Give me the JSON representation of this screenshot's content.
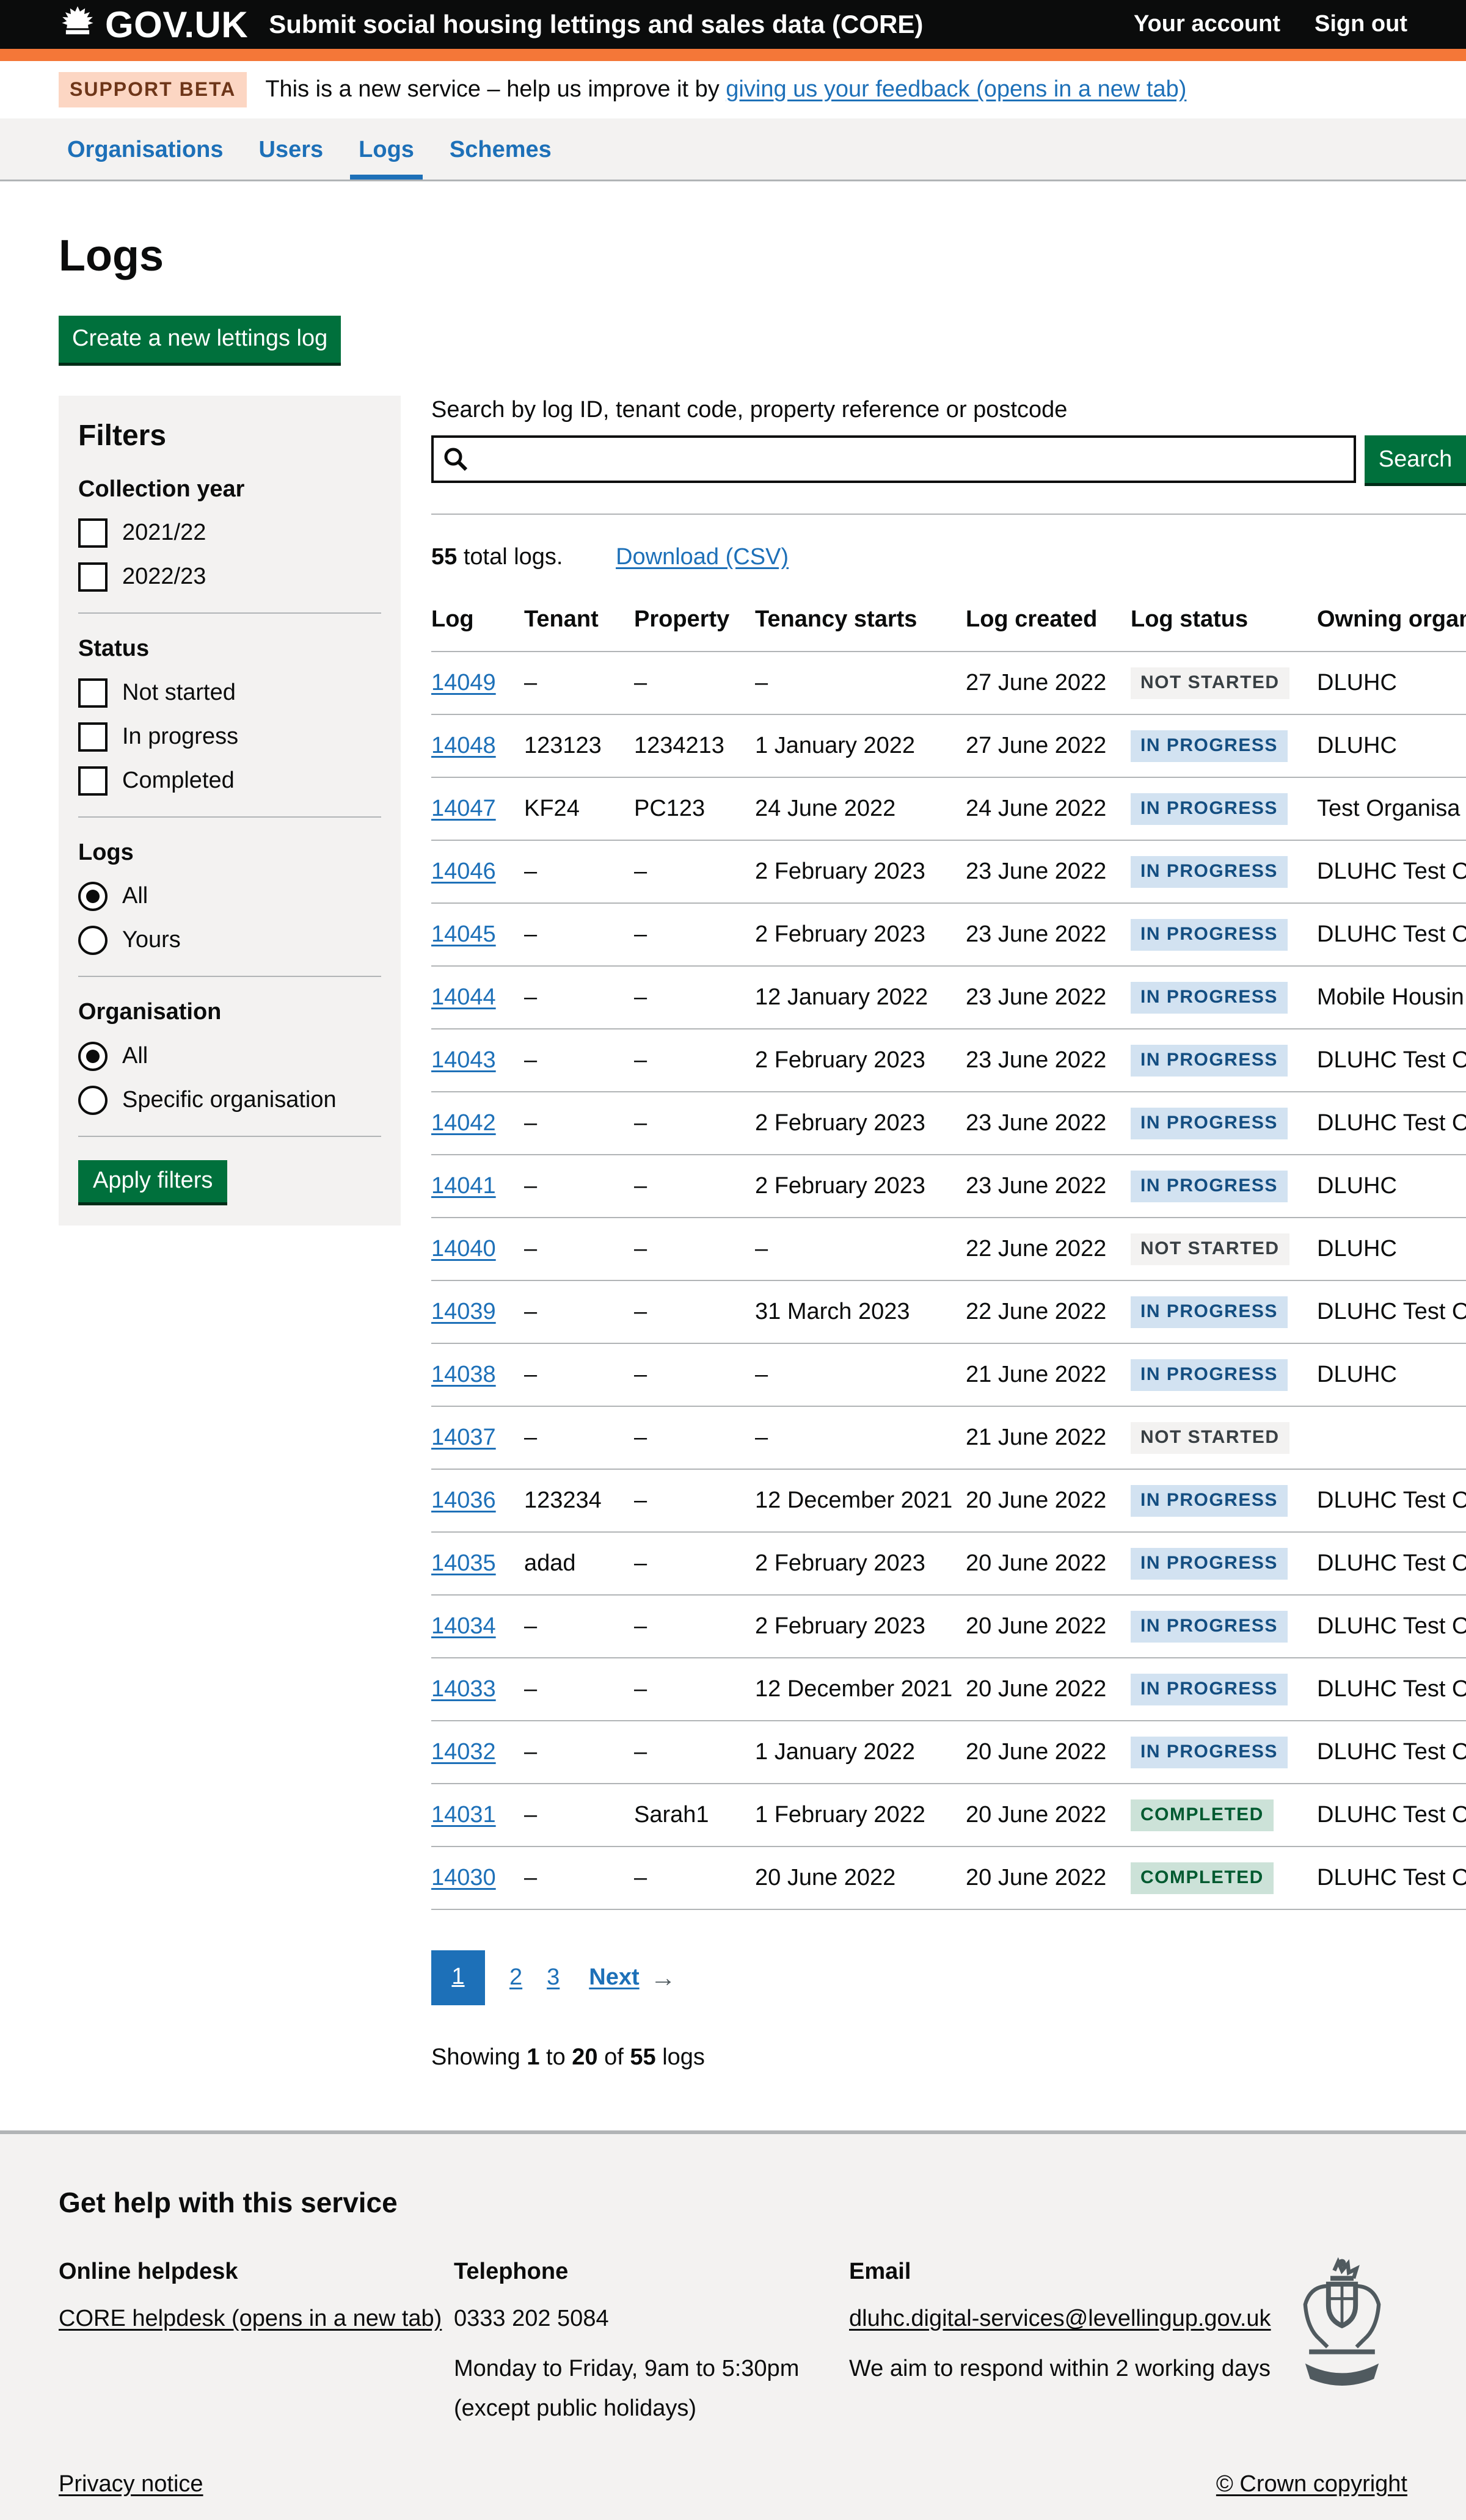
{
  "colors": {
    "header_bg": "#0b0c0c",
    "header_accent": "#f47738",
    "link_blue": "#1d70b8",
    "button_green": "#00703c",
    "panel_grey": "#f3f2f1",
    "border_grey": "#b1b4b6",
    "beta_tag_bg": "#fcd6c3",
    "beta_tag_text": "#6e3619",
    "tag_grey_bg": "#f3f2f1",
    "tag_grey_text": "#383f43",
    "tag_blue_bg": "#d2e2f1",
    "tag_blue_text": "#144e81",
    "tag_green_bg": "#cce2d8",
    "tag_green_text": "#005a30",
    "crest_grey": "#505a5f"
  },
  "header": {
    "logo": "GOV.UK",
    "service_name": "Submit social housing lettings and sales data (CORE)",
    "links": [
      {
        "label": "Your account"
      },
      {
        "label": "Sign out"
      }
    ]
  },
  "phase_banner": {
    "tag": "SUPPORT BETA",
    "text": "This is a new service – help us improve it by ",
    "link": "giving us your feedback (opens in a new tab)"
  },
  "nav": {
    "items": [
      {
        "label": "Organisations",
        "active": false
      },
      {
        "label": "Users",
        "active": false
      },
      {
        "label": "Logs",
        "active": true
      },
      {
        "label": "Schemes",
        "active": false
      }
    ]
  },
  "page": {
    "title": "Logs",
    "create_button": "Create a new lettings log"
  },
  "filters": {
    "title": "Filters",
    "apply_button": "Apply filters",
    "groups": [
      {
        "label": "Collection year",
        "type": "checkbox",
        "options": [
          {
            "label": "2021/22",
            "checked": false
          },
          {
            "label": "2022/23",
            "checked": false
          }
        ]
      },
      {
        "label": "Status",
        "type": "checkbox",
        "options": [
          {
            "label": "Not started",
            "checked": false
          },
          {
            "label": "In progress",
            "checked": false
          },
          {
            "label": "Completed",
            "checked": false
          }
        ]
      },
      {
        "label": "Logs",
        "type": "radio",
        "options": [
          {
            "label": "All",
            "checked": true
          },
          {
            "label": "Yours",
            "checked": false
          }
        ]
      },
      {
        "label": "Organisation",
        "type": "radio",
        "options": [
          {
            "label": "All",
            "checked": true
          },
          {
            "label": "Specific organisation",
            "checked": false
          }
        ]
      }
    ]
  },
  "search": {
    "label": "Search by log ID, tenant code, property reference or postcode",
    "value": "",
    "button": "Search"
  },
  "results": {
    "count": "55",
    "count_suffix": " total logs.",
    "download_link": "Download (CSV)"
  },
  "table": {
    "headers": [
      "Log",
      "Tenant",
      "Property",
      "Tenancy starts",
      "Log created",
      "Log status",
      "Owning organisation"
    ],
    "rows": [
      {
        "log": "14049",
        "tenant": "–",
        "property": "–",
        "tenancy_starts": "–",
        "log_created": "27 June 2022",
        "status": {
          "label": "NOT STARTED",
          "type": "grey"
        },
        "owning_org": "DLUHC"
      },
      {
        "log": "14048",
        "tenant": "123123",
        "property": "1234213",
        "tenancy_starts": "1 January 2022",
        "log_created": "27 June 2022",
        "status": {
          "label": "IN PROGRESS",
          "type": "blue"
        },
        "owning_org": "DLUHC"
      },
      {
        "log": "14047",
        "tenant": "KF24",
        "property": "PC123",
        "tenancy_starts": "24 June 2022",
        "log_created": "24 June 2022",
        "status": {
          "label": "IN PROGRESS",
          "type": "blue"
        },
        "owning_org": "Test Organisa"
      },
      {
        "log": "14046",
        "tenant": "–",
        "property": "–",
        "tenancy_starts": "2 February 2023",
        "log_created": "23 June 2022",
        "status": {
          "label": "IN PROGRESS",
          "type": "blue"
        },
        "owning_org": "DLUHC Test Org"
      },
      {
        "log": "14045",
        "tenant": "–",
        "property": "–",
        "tenancy_starts": "2 February 2023",
        "log_created": "23 June 2022",
        "status": {
          "label": "IN PROGRESS",
          "type": "blue"
        },
        "owning_org": "DLUHC Test Org"
      },
      {
        "log": "14044",
        "tenant": "–",
        "property": "–",
        "tenancy_starts": "12 January 2022",
        "log_created": "23 June 2022",
        "status": {
          "label": "IN PROGRESS",
          "type": "blue"
        },
        "owning_org": "Mobile Housin"
      },
      {
        "log": "14043",
        "tenant": "–",
        "property": "–",
        "tenancy_starts": "2 February 2023",
        "log_created": "23 June 2022",
        "status": {
          "label": "IN PROGRESS",
          "type": "blue"
        },
        "owning_org": "DLUHC Test Org"
      },
      {
        "log": "14042",
        "tenant": "–",
        "property": "–",
        "tenancy_starts": "2 February 2023",
        "log_created": "23 June 2022",
        "status": {
          "label": "IN PROGRESS",
          "type": "blue"
        },
        "owning_org": "DLUHC Test Org"
      },
      {
        "log": "14041",
        "tenant": "–",
        "property": "–",
        "tenancy_starts": "2 February 2023",
        "log_created": "23 June 2022",
        "status": {
          "label": "IN PROGRESS",
          "type": "blue"
        },
        "owning_org": "DLUHC"
      },
      {
        "log": "14040",
        "tenant": "–",
        "property": "–",
        "tenancy_starts": "–",
        "log_created": "22 June 2022",
        "status": {
          "label": "NOT STARTED",
          "type": "grey"
        },
        "owning_org": "DLUHC"
      },
      {
        "log": "14039",
        "tenant": "–",
        "property": "–",
        "tenancy_starts": "31 March 2023",
        "log_created": "22 June 2022",
        "status": {
          "label": "IN PROGRESS",
          "type": "blue"
        },
        "owning_org": "DLUHC Test Org"
      },
      {
        "log": "14038",
        "tenant": "–",
        "property": "–",
        "tenancy_starts": "–",
        "log_created": "21 June 2022",
        "status": {
          "label": "IN PROGRESS",
          "type": "blue"
        },
        "owning_org": "DLUHC"
      },
      {
        "log": "14037",
        "tenant": "–",
        "property": "–",
        "tenancy_starts": "–",
        "log_created": "21 June 2022",
        "status": {
          "label": "NOT STARTED",
          "type": "grey"
        },
        "owning_org": ""
      },
      {
        "log": "14036",
        "tenant": "123234",
        "property": "–",
        "tenancy_starts": "12 December 2021",
        "log_created": "20 June 2022",
        "status": {
          "label": "IN PROGRESS",
          "type": "blue"
        },
        "owning_org": "DLUHC Test Org"
      },
      {
        "log": "14035",
        "tenant": "adad",
        "property": "–",
        "tenancy_starts": "2 February 2023",
        "log_created": "20 June 2022",
        "status": {
          "label": "IN PROGRESS",
          "type": "blue"
        },
        "owning_org": "DLUHC Test Org"
      },
      {
        "log": "14034",
        "tenant": "–",
        "property": "–",
        "tenancy_starts": "2 February 2023",
        "log_created": "20 June 2022",
        "status": {
          "label": "IN PROGRESS",
          "type": "blue"
        },
        "owning_org": "DLUHC Test Org"
      },
      {
        "log": "14033",
        "tenant": "–",
        "property": "–",
        "tenancy_starts": "12 December 2021",
        "log_created": "20 June 2022",
        "status": {
          "label": "IN PROGRESS",
          "type": "blue"
        },
        "owning_org": "DLUHC Test Org"
      },
      {
        "log": "14032",
        "tenant": "–",
        "property": "–",
        "tenancy_starts": "1 January 2022",
        "log_created": "20 June 2022",
        "status": {
          "label": "IN PROGRESS",
          "type": "blue"
        },
        "owning_org": "DLUHC Test Org"
      },
      {
        "log": "14031",
        "tenant": "–",
        "property": "Sarah1",
        "tenancy_starts": "1 February 2022",
        "log_created": "20 June 2022",
        "status": {
          "label": "COMPLETED",
          "type": "green"
        },
        "owning_org": "DLUHC Test Org"
      },
      {
        "log": "14030",
        "tenant": "–",
        "property": "–",
        "tenancy_starts": "20 June 2022",
        "log_created": "20 June 2022",
        "status": {
          "label": "COMPLETED",
          "type": "green"
        },
        "owning_org": "DLUHC Test Org"
      }
    ]
  },
  "pagination": {
    "current": "1",
    "others": [
      "2",
      "3"
    ],
    "next_label": "Next",
    "arrow": "→"
  },
  "showing": {
    "prefix": "Showing ",
    "from": "1",
    "mid": " to ",
    "to": "20",
    "of": " of ",
    "total": "55",
    "suffix": " logs"
  },
  "footer": {
    "heading": "Get help with this service",
    "columns": {
      "helpdesk": {
        "heading": "Online helpdesk",
        "link": "CORE helpdesk (opens in a new tab)"
      },
      "telephone": {
        "heading": "Telephone",
        "number": "0333 202 5084",
        "hours": "Monday to Friday, 9am to 5:30pm",
        "holidays": "(except public holidays)"
      },
      "email": {
        "heading": "Email",
        "link": "dluhc.digital-services@levellingup.gov.uk",
        "note": "We aim to respond within 2 working days"
      }
    },
    "privacy_link": "Privacy notice",
    "copyright": "© Crown copyright"
  }
}
